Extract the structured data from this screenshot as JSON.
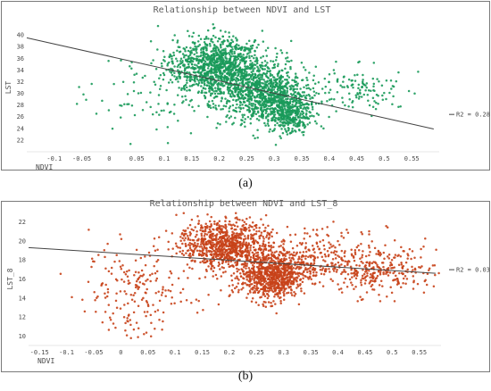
{
  "captions": {
    "a": "(a)",
    "b": "(b)"
  },
  "chart_data": [
    {
      "type": "scatter",
      "title": "Relationship between NDVI and LST",
      "xlabel": "NDVI",
      "ylabel": "LST",
      "xlim": [
        -0.15,
        0.6
      ],
      "ylim": [
        20,
        42
      ],
      "x_ticks": [
        "-0.1",
        "-0.05",
        "0",
        "0.05",
        "0.1",
        "0.15",
        "0.2",
        "0.25",
        "0.3",
        "0.35",
        "0.4",
        "0.45",
        "0.5",
        "0.55"
      ],
      "y_ticks": [
        "22",
        "24",
        "26",
        "28",
        "30",
        "32",
        "34",
        "36",
        "38",
        "40"
      ],
      "series": [
        {
          "color": "#1a9a5a",
          "clusters": [
            {
              "x": 0.2,
              "y": 34.5,
              "sx": 0.045,
              "sy": 2.6,
              "w": 0.45
            },
            {
              "x": 0.29,
              "y": 29.5,
              "sx": 0.035,
              "sy": 2.4,
              "w": 0.35
            },
            {
              "x": 0.33,
              "y": 26.0,
              "sx": 0.02,
              "sy": 1.4,
              "w": 0.1
            },
            {
              "x": 0.12,
              "y": 30.0,
              "sx": 0.07,
              "sy": 4.0,
              "w": 0.05
            },
            {
              "x": 0.44,
              "y": 30.5,
              "sx": 0.05,
              "sy": 2.2,
              "w": 0.05
            }
          ]
        }
      ],
      "trend_line": {
        "x": [
          -0.15,
          0.59
        ],
        "y": [
          39.5,
          23.9
        ],
        "color": "#444444"
      },
      "legend": {
        "text": "R2 = 0.28",
        "position": "right"
      },
      "colors": {
        "point": "#1a9a5a",
        "line": "#444444"
      }
    },
    {
      "type": "scatter",
      "title": "Relationship between NDVI and LST_8",
      "xlabel": "NDVI",
      "ylabel": "LST_8",
      "xlim": [
        -0.17,
        0.59
      ],
      "ylim": [
        9,
        23
      ],
      "x_ticks": [
        "-0.15",
        "-0.1",
        "-0.05",
        "0",
        "0.05",
        "0.1",
        "0.15",
        "0.2",
        "0.25",
        "0.3",
        "0.35",
        "0.4",
        "0.45",
        "0.5",
        "0.55"
      ],
      "y_ticks": [
        "10",
        "12",
        "14",
        "16",
        "18",
        "20",
        "22"
      ],
      "series": [
        {
          "color": "#c8431a",
          "clusters": [
            {
              "x": 0.19,
              "y": 19.7,
              "sx": 0.04,
              "sy": 1.3,
              "w": 0.35
            },
            {
              "x": 0.28,
              "y": 16.3,
              "sx": 0.03,
              "sy": 1.2,
              "w": 0.3
            },
            {
              "x": 0.33,
              "y": 18.0,
              "sx": 0.09,
              "sy": 1.6,
              "w": 0.18
            },
            {
              "x": 0.48,
              "y": 17.0,
              "sx": 0.05,
              "sy": 1.3,
              "w": 0.09
            },
            {
              "x": 0.03,
              "y": 14.5,
              "sx": 0.05,
              "sy": 2.3,
              "w": 0.08
            }
          ]
        }
      ],
      "trend_line": {
        "x": [
          -0.17,
          0.58
        ],
        "y": [
          19.3,
          16.6
        ],
        "color": "#444444"
      },
      "legend": {
        "text": "R2 = 0.03",
        "position": "right"
      },
      "colors": {
        "point": "#c8431a",
        "line": "#444444"
      }
    }
  ]
}
